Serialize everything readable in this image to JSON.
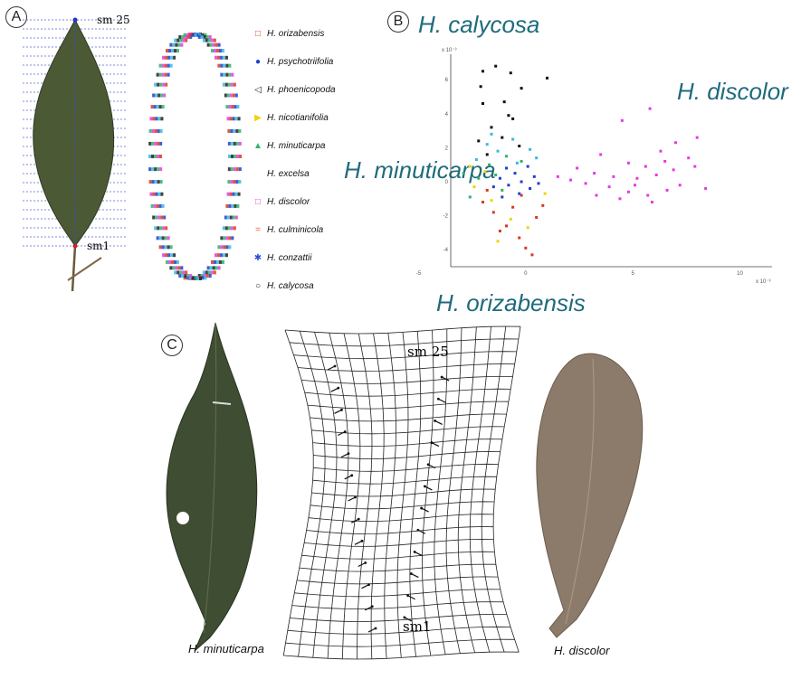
{
  "panels": {
    "a": "A",
    "b": "B",
    "c": "C"
  },
  "panel_a": {
    "landmark_top": "sm 25",
    "landmark_bottom": "sm1",
    "legend": [
      {
        "label": "H. orizabensis",
        "color": "#d9381e",
        "marker": "□"
      },
      {
        "label": "H. psychotriifolia",
        "color": "#1f3fcf",
        "marker": "●"
      },
      {
        "label": "H. phoenicopoda",
        "color": "#222222",
        "marker": "◁"
      },
      {
        "label": "H. nicotianifolia",
        "color": "#f2d200",
        "marker": "▶"
      },
      {
        "label": "H. minuticarpa",
        "color": "#2db36a",
        "marker": "▲"
      },
      {
        "label": "H. excelsa",
        "color": "#ffffff",
        "marker": ""
      },
      {
        "label": "H. discolor",
        "color": "#e23be0",
        "marker": "□"
      },
      {
        "label": "H. culminicola",
        "color": "#e0602a",
        "marker": "="
      },
      {
        "label": "H. conzattii",
        "color": "#2c4cd6",
        "marker": "✱"
      },
      {
        "label": "H. calycosa",
        "color": "#222222",
        "marker": "○"
      }
    ]
  },
  "panel_b": {
    "labels": {
      "top": "H. calycosa",
      "right": "H. discolor",
      "left": "H. minuticarpa",
      "bottom": "H. orizabensis"
    },
    "y_exponent": "x 10⁻³",
    "x_exponent": "x 10⁻³",
    "chart_data": {
      "type": "scatter",
      "xlim": [
        -3.5,
        11.5
      ],
      "ylim": [
        -5,
        7.5
      ],
      "x_ticks": [
        "-5",
        "0",
        "5",
        "10"
      ],
      "x_tick_values": [
        -5,
        0,
        5,
        10
      ],
      "y_ticks": [
        "6",
        "4",
        "2",
        "0",
        "-2",
        "-4"
      ],
      "y_tick_values": [
        6,
        4,
        2,
        0,
        -2,
        -4
      ],
      "series": [
        {
          "name": "H. calycosa",
          "color": "#111111",
          "points": [
            [
              -2,
              6.5
            ],
            [
              -1.4,
              6.8
            ],
            [
              -0.7,
              6.4
            ],
            [
              1,
              6.1
            ],
            [
              -2.1,
              5.6
            ],
            [
              -0.2,
              5.5
            ],
            [
              -2,
              4.6
            ],
            [
              -1,
              4.7
            ],
            [
              -0.8,
              3.9
            ],
            [
              -1.6,
              3.2
            ],
            [
              -0.6,
              3.7
            ],
            [
              -2.2,
              2.4
            ],
            [
              -1.1,
              2.6
            ],
            [
              -0.3,
              2.1
            ],
            [
              -1.8,
              1.6
            ]
          ]
        },
        {
          "name": "H. discolor",
          "color": "#e23be0",
          "points": [
            [
              5.8,
              4.3
            ],
            [
              4.5,
              3.6
            ],
            [
              7,
              2.3
            ],
            [
              8,
              2.6
            ],
            [
              6.5,
              1.2
            ],
            [
              3.5,
              1.6
            ],
            [
              4.8,
              1.1
            ],
            [
              5.6,
              0.9
            ],
            [
              6.9,
              0.7
            ],
            [
              7.9,
              0.9
            ],
            [
              3.2,
              0.5
            ],
            [
              4.1,
              0.3
            ],
            [
              5.2,
              0.2
            ],
            [
              6.1,
              0.4
            ],
            [
              7.2,
              -0.2
            ],
            [
              8.4,
              -0.4
            ],
            [
              2.1,
              0.1
            ],
            [
              2.8,
              -0.1
            ],
            [
              3.9,
              -0.3
            ],
            [
              4.8,
              -0.6
            ],
            [
              5.7,
              -0.8
            ],
            [
              6.6,
              -0.5
            ],
            [
              1.5,
              0.3
            ],
            [
              3.3,
              -0.8
            ],
            [
              4.4,
              -1
            ],
            [
              5.9,
              -1.2
            ],
            [
              2.4,
              0.8
            ],
            [
              6.3,
              1.8
            ],
            [
              7.6,
              1.4
            ],
            [
              5.1,
              -0.2
            ]
          ]
        },
        {
          "name": "H. orizabensis",
          "color": "#d9381e",
          "points": [
            [
              -2,
              -1.2
            ],
            [
              -1.5,
              -1.8
            ],
            [
              -0.9,
              -2.6
            ],
            [
              -0.3,
              -3.3
            ],
            [
              0,
              -3.9
            ],
            [
              -1.2,
              -2.9
            ],
            [
              0.5,
              -2.1
            ],
            [
              -0.6,
              -1.5
            ],
            [
              0.3,
              -4.3
            ],
            [
              -1.8,
              -0.5
            ],
            [
              -0.2,
              -0.8
            ],
            [
              0.8,
              -1.4
            ]
          ]
        },
        {
          "name": "H. psychotriifolia",
          "color": "#1f3fcf",
          "points": [
            [
              -1.2,
              0.2
            ],
            [
              -0.8,
              -0.2
            ],
            [
              -0.5,
              0.5
            ],
            [
              -0.2,
              0
            ],
            [
              0.2,
              -0.4
            ],
            [
              -1.5,
              -0.3
            ],
            [
              -0.9,
              0.8
            ],
            [
              0.4,
              0.3
            ],
            [
              -0.3,
              -0.7
            ],
            [
              0.6,
              -0.1
            ],
            [
              -1.1,
              -0.9
            ],
            [
              0.1,
              0.9
            ]
          ]
        },
        {
          "name": "H. nicotianifolia",
          "color": "#f2d200",
          "points": [
            [
              -2.4,
              -0.3
            ],
            [
              -1.9,
              0.6
            ],
            [
              -1.6,
              -1.1
            ],
            [
              -0.7,
              -2.2
            ],
            [
              0.1,
              -2.7
            ],
            [
              -2.6,
              0.9
            ],
            [
              0.9,
              -0.7
            ],
            [
              -1.3,
              -3.5
            ]
          ]
        },
        {
          "name": "H. minuticarpa",
          "color": "#2db36a",
          "points": [
            [
              -2.2,
              0.2
            ],
            [
              -1.7,
              1
            ],
            [
              -2.6,
              -0.9
            ],
            [
              -1.4,
              0.4
            ],
            [
              -0.9,
              1.5
            ],
            [
              -2.9,
              0.5
            ],
            [
              -1.1,
              -0.5
            ],
            [
              -0.2,
              1.2
            ]
          ]
        },
        {
          "name": "H. conzattii",
          "color": "#38b8e0",
          "points": [
            [
              -1.8,
              2.2
            ],
            [
              -1.3,
              1.8
            ],
            [
              -0.6,
              2.5
            ],
            [
              0.2,
              1.9
            ],
            [
              -2.3,
              1.3
            ],
            [
              -0.4,
              1.1
            ],
            [
              0.5,
              1.4
            ],
            [
              -1.6,
              2.8
            ]
          ]
        }
      ]
    }
  },
  "panel_c": {
    "landmark_top": "sm 25",
    "landmark_bottom": "sm1",
    "caption_left": "H. minuticarpa",
    "caption_right": "H. discolor"
  }
}
